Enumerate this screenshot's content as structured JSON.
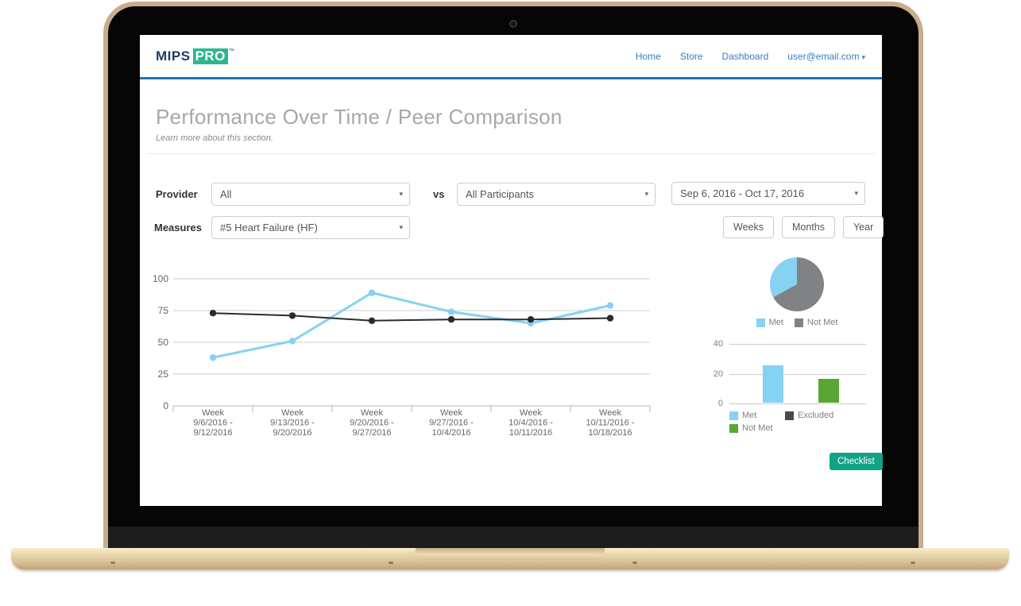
{
  "icons": {
    "caret_down": "▾",
    "trademark": "™"
  },
  "header": {
    "logo": {
      "mips": "MIPS",
      "pro": "PRO"
    },
    "nav": [
      {
        "label": "Home"
      },
      {
        "label": "Store"
      },
      {
        "label": "Dashboard"
      },
      {
        "label": "user@email.com",
        "has_caret": true
      }
    ]
  },
  "page": {
    "title": "Performance Over Time / Peer Comparison",
    "subtitle": "Learn more about this section."
  },
  "filters": {
    "provider_label": "Provider",
    "provider_value": "All",
    "vs_label": "vs",
    "participants_value": "All Participants",
    "date_range_value": "Sep 6, 2016 - Oct 17, 2016",
    "measures_label": "Measures",
    "measures_value": "#5 Heart Failure (HF)",
    "range_buttons": [
      "Weeks",
      "Months",
      "Year"
    ]
  },
  "checklist_button_label": "Checklist",
  "colors": {
    "header_border": "#1b75bc",
    "nav_link": "#3a7dc1",
    "logo_navy": "#1e3c64",
    "logo_green": "#2eb690",
    "series_blue": "#86d2f2",
    "series_black": "#2b2b2b",
    "pie_gray": "#808285",
    "bar_green": "#5ba535",
    "excluded_gray": "#4a4a4a",
    "button_teal": "#12a287",
    "axis_text": "#666666",
    "gridline": "#cccccc"
  },
  "chart_data": [
    {
      "type": "line",
      "categories": [
        [
          "Week",
          "9/6/2016 -",
          "9/12/2016"
        ],
        [
          "Week",
          "9/13/2016 -",
          "9/20/2016"
        ],
        [
          "Week",
          "9/20/2016 -",
          "9/27/2016"
        ],
        [
          "Week",
          "9/27/2016 -",
          "10/4/2016"
        ],
        [
          "Week",
          "10/4/2016 -",
          "10/11/2016"
        ],
        [
          "Week",
          "10/11/2016 -",
          "10/18/2016"
        ]
      ],
      "series": [
        {
          "color": "#86d2f2",
          "values": [
            38,
            51,
            89,
            74,
            65,
            79
          ]
        },
        {
          "color": "#2b2b2b",
          "values": [
            73,
            71,
            67,
            68,
            68,
            69
          ]
        }
      ],
      "ylim": [
        0,
        100
      ],
      "yticks": [
        0,
        25,
        50,
        75,
        100
      ],
      "grid": true,
      "legend_position": "none"
    },
    {
      "type": "pie",
      "slices": [
        {
          "label": "Met",
          "value": 33,
          "color": "#86d2f2"
        },
        {
          "label": "Not Met",
          "value": 67,
          "color": "#808285"
        }
      ],
      "legend_position": "bottom"
    },
    {
      "type": "bar",
      "categories": [
        "Met",
        "Not Met",
        "Excluded"
      ],
      "values": [
        25,
        16,
        0
      ],
      "colors": [
        "#86d2f2",
        "#5ba535",
        "#4a4a4a"
      ],
      "ylim": [
        0,
        40
      ],
      "yticks": [
        0,
        20,
        40
      ],
      "grid": true,
      "legend_position": "bottom",
      "legend_order": [
        "Met",
        "Excluded",
        "Not Met"
      ]
    }
  ]
}
